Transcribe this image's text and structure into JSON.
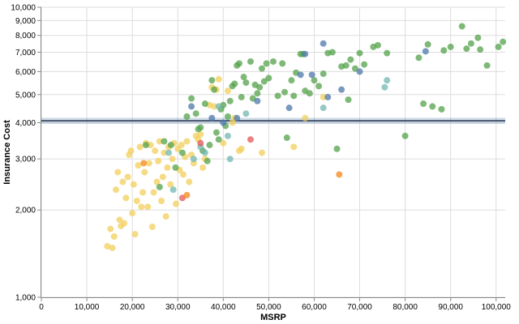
{
  "chart_data": {
    "type": "scatter",
    "xlabel": "MSRP",
    "ylabel": "Insurance Cost",
    "x_scale": "linear",
    "y_scale": "log",
    "xlim": [
      0,
      102000
    ],
    "ylim": [
      1000,
      10000
    ],
    "x_ticks": [
      {
        "value": 0,
        "label": "0"
      },
      {
        "value": 10000,
        "label": "10,000"
      },
      {
        "value": 20000,
        "label": "20,000"
      },
      {
        "value": 30000,
        "label": "30,000"
      },
      {
        "value": 40000,
        "label": "40,000"
      },
      {
        "value": 50000,
        "label": "50,000"
      },
      {
        "value": 60000,
        "label": "60,000"
      },
      {
        "value": 70000,
        "label": "70,000"
      },
      {
        "value": 80000,
        "label": "80,000"
      },
      {
        "value": 90000,
        "label": "90,000"
      },
      {
        "value": 100000,
        "label": "100,000"
      }
    ],
    "y_ticks": [
      {
        "value": 1000,
        "label": "1,000"
      },
      {
        "value": 2000,
        "label": "2,000"
      },
      {
        "value": 3000,
        "label": "3,000"
      },
      {
        "value": 4000,
        "label": "4,000"
      },
      {
        "value": 5000,
        "label": "5,000"
      },
      {
        "value": 6000,
        "label": "6,000"
      },
      {
        "value": 7000,
        "label": "7,000"
      },
      {
        "value": 8000,
        "label": "8,000"
      },
      {
        "value": 9000,
        "label": "9,000"
      },
      {
        "value": 10000,
        "label": "10,000"
      }
    ],
    "grid": true,
    "reference_line": {
      "y": 4060,
      "color": "#4c78a8"
    },
    "reference_band": {
      "y_range": [
        3960,
        4160
      ],
      "color": "#4c78a8",
      "opacity": 0.25
    },
    "point_opacity": 0.75,
    "groups": [
      {
        "color": "#f2cf5b",
        "points": [
          [
            14500,
            1500
          ],
          [
            15200,
            1720
          ],
          [
            15600,
            1480
          ],
          [
            16000,
            1620
          ],
          [
            16400,
            2350
          ],
          [
            16800,
            2700
          ],
          [
            17200,
            1850
          ],
          [
            17500,
            1760
          ],
          [
            17900,
            2500
          ],
          [
            18200,
            1800
          ],
          [
            18600,
            2200
          ],
          [
            19000,
            2600
          ],
          [
            19300,
            3100
          ],
          [
            19700,
            3200
          ],
          [
            20000,
            1950
          ],
          [
            20300,
            2450
          ],
          [
            20600,
            1650
          ],
          [
            21000,
            2150
          ],
          [
            21300,
            2850
          ],
          [
            21700,
            3300
          ],
          [
            22000,
            2050
          ],
          [
            22300,
            2300
          ],
          [
            22700,
            2700
          ],
          [
            23000,
            3400
          ],
          [
            23400,
            2050
          ],
          [
            23700,
            2900
          ],
          [
            24000,
            3350
          ],
          [
            24400,
            1750
          ],
          [
            24700,
            2300
          ],
          [
            25000,
            3200
          ],
          [
            25400,
            2500
          ],
          [
            25700,
            2950
          ],
          [
            26000,
            3450
          ],
          [
            26400,
            2150
          ],
          [
            26700,
            2600
          ],
          [
            27000,
            3150
          ],
          [
            27400,
            1900
          ],
          [
            27700,
            2800
          ],
          [
            28000,
            3300
          ],
          [
            28400,
            2450
          ],
          [
            28800,
            3000
          ],
          [
            29200,
            3400
          ],
          [
            29600,
            2100
          ],
          [
            30000,
            3250
          ],
          [
            30400,
            2750
          ],
          [
            30800,
            3350
          ],
          [
            31200,
            2650
          ],
          [
            31600,
            3050
          ],
          [
            32000,
            3450
          ],
          [
            32500,
            2500
          ],
          [
            33000,
            3100
          ],
          [
            33500,
            2900
          ],
          [
            34000,
            3600
          ],
          [
            34500,
            3500
          ],
          [
            35000,
            3650
          ],
          [
            35500,
            2800
          ],
          [
            36000,
            3000
          ],
          [
            37000,
            4600
          ],
          [
            37500,
            5300
          ],
          [
            38000,
            4550
          ],
          [
            38500,
            5200
          ],
          [
            39000,
            5650
          ],
          [
            40000,
            3400
          ],
          [
            41000,
            5150
          ],
          [
            42000,
            4000
          ],
          [
            42500,
            4150
          ],
          [
            43500,
            3200
          ],
          [
            44000,
            3250
          ],
          [
            48500,
            3150
          ],
          [
            55500,
            3300
          ],
          [
            58000,
            4150
          ],
          [
            62000,
            4900
          ]
        ]
      },
      {
        "color": "#54a24b",
        "points": [
          [
            23000,
            3350
          ],
          [
            26000,
            2400
          ],
          [
            27000,
            3450
          ],
          [
            28500,
            3350
          ],
          [
            29500,
            2800
          ],
          [
            31000,
            3150
          ],
          [
            32000,
            4200
          ],
          [
            33000,
            4850
          ],
          [
            34000,
            4300
          ],
          [
            34500,
            3800
          ],
          [
            35000,
            3850
          ],
          [
            35500,
            3200
          ],
          [
            36000,
            4650
          ],
          [
            36500,
            2950
          ],
          [
            37000,
            3350
          ],
          [
            37500,
            5600
          ],
          [
            38000,
            5200
          ],
          [
            38500,
            3700
          ],
          [
            39000,
            3500
          ],
          [
            39500,
            4450
          ],
          [
            40000,
            4600
          ],
          [
            40500,
            3900
          ],
          [
            41000,
            4200
          ],
          [
            41500,
            4750
          ],
          [
            42000,
            5350
          ],
          [
            42500,
            5450
          ],
          [
            43000,
            6300
          ],
          [
            43500,
            6400
          ],
          [
            44000,
            4900
          ],
          [
            44500,
            5750
          ],
          [
            45000,
            5500
          ],
          [
            46000,
            6500
          ],
          [
            46500,
            4850
          ],
          [
            47000,
            5400
          ],
          [
            47500,
            5050
          ],
          [
            48000,
            5300
          ],
          [
            48500,
            6150
          ],
          [
            49000,
            5550
          ],
          [
            49500,
            6400
          ],
          [
            50000,
            5700
          ],
          [
            51000,
            6500
          ],
          [
            52000,
            4950
          ],
          [
            53000,
            6400
          ],
          [
            53500,
            5100
          ],
          [
            54000,
            3550
          ],
          [
            55000,
            5600
          ],
          [
            55500,
            4950
          ],
          [
            56000,
            5950
          ],
          [
            57000,
            6900
          ],
          [
            57500,
            6900
          ],
          [
            58000,
            5150
          ],
          [
            59000,
            5050
          ],
          [
            60000,
            5600
          ],
          [
            61000,
            5350
          ],
          [
            62000,
            5900
          ],
          [
            63000,
            6950
          ],
          [
            64000,
            7000
          ],
          [
            65000,
            3250
          ],
          [
            66000,
            6250
          ],
          [
            67000,
            6300
          ],
          [
            67500,
            4800
          ],
          [
            68000,
            6600
          ],
          [
            69000,
            6150
          ],
          [
            70000,
            6950
          ],
          [
            71000,
            6350
          ],
          [
            73000,
            7300
          ],
          [
            74000,
            7400
          ],
          [
            76000,
            6950
          ],
          [
            80000,
            3600
          ],
          [
            83000,
            6700
          ],
          [
            84000,
            4650
          ],
          [
            85000,
            7450
          ],
          [
            86000,
            4550
          ],
          [
            88000,
            4450
          ],
          [
            88500,
            7100
          ],
          [
            90000,
            7300
          ],
          [
            92500,
            8600
          ],
          [
            93500,
            7200
          ],
          [
            94500,
            7500
          ],
          [
            96000,
            7850
          ],
          [
            96500,
            7150
          ],
          [
            98000,
            6300
          ],
          [
            100500,
            7300
          ],
          [
            101500,
            7600
          ]
        ]
      },
      {
        "color": "#4c78a8",
        "points": [
          [
            33000,
            4550
          ],
          [
            37500,
            4150
          ],
          [
            40000,
            4000
          ],
          [
            43000,
            4150
          ],
          [
            47500,
            4750
          ],
          [
            54500,
            4500
          ],
          [
            57000,
            5850
          ],
          [
            58000,
            6900
          ],
          [
            59500,
            5850
          ],
          [
            62000,
            7500
          ],
          [
            63000,
            4900
          ],
          [
            66000,
            5200
          ],
          [
            70000,
            6000
          ],
          [
            84500,
            7050
          ]
        ]
      },
      {
        "color": "#72b7b2",
        "points": [
          [
            28000,
            3150
          ],
          [
            29000,
            2350
          ],
          [
            33500,
            3000
          ],
          [
            35000,
            3300
          ],
          [
            36000,
            3150
          ],
          [
            39000,
            4550
          ],
          [
            41000,
            3600
          ],
          [
            41500,
            3000
          ],
          [
            45000,
            4300
          ],
          [
            62000,
            4500
          ],
          [
            75500,
            5300
          ],
          [
            76000,
            5600
          ]
        ]
      },
      {
        "color": "#e45756",
        "points": [
          [
            31000,
            2200
          ],
          [
            35000,
            3400
          ],
          [
            46000,
            3500
          ]
        ]
      },
      {
        "color": "#f58518",
        "points": [
          [
            22500,
            2900
          ],
          [
            32000,
            2250
          ],
          [
            65500,
            2650
          ]
        ]
      }
    ]
  }
}
